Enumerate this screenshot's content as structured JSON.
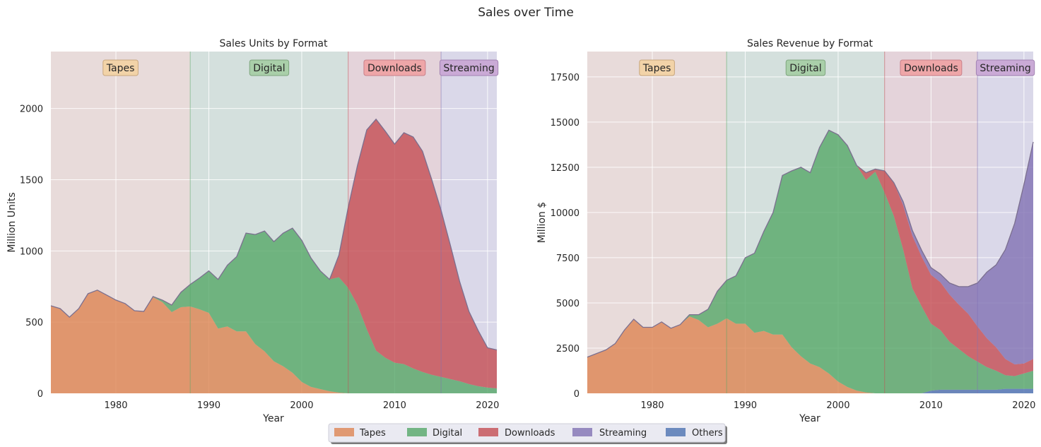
{
  "figure": {
    "title": "Sales over Time"
  },
  "legend": {
    "items": [
      {
        "label": "Tapes",
        "color": "#dd8452"
      },
      {
        "label": "Digital",
        "color": "#55a868"
      },
      {
        "label": "Downloads",
        "color": "#c44e52"
      },
      {
        "label": "Streaming",
        "color": "#8172b3"
      },
      {
        "label": "Others",
        "color": "#4c72b0"
      }
    ]
  },
  "chart_data": [
    {
      "type": "area",
      "stacked": true,
      "title": "Sales Units by Format",
      "xlabel": "Year",
      "ylabel": "Million Units",
      "xlim": [
        1973,
        2021
      ],
      "ylim": [
        0,
        2400
      ],
      "xticks": [
        1980,
        1990,
        2000,
        2010,
        2020
      ],
      "yticks": [
        0,
        500,
        1000,
        1500,
        2000
      ],
      "grid": true,
      "eras": [
        {
          "label": "Tapes",
          "start": 1973,
          "end": 1988,
          "color": "#dd8452"
        },
        {
          "label": "Digital",
          "start": 1988,
          "end": 2005,
          "color": "#55a868"
        },
        {
          "label": "Downloads",
          "start": 2005,
          "end": 2015,
          "color": "#c44e52"
        },
        {
          "label": "Streaming",
          "start": 2015,
          "end": 2021,
          "color": "#8172b3"
        }
      ],
      "x": [
        1973,
        1974,
        1975,
        1976,
        1977,
        1978,
        1979,
        1980,
        1981,
        1982,
        1983,
        1984,
        1985,
        1986,
        1987,
        1988,
        1989,
        1990,
        1991,
        1992,
        1993,
        1994,
        1995,
        1996,
        1997,
        1998,
        1999,
        2000,
        2001,
        2002,
        2003,
        2004,
        2005,
        2006,
        2007,
        2008,
        2009,
        2010,
        2011,
        2012,
        2013,
        2014,
        2015,
        2016,
        2017,
        2018,
        2019,
        2020,
        2021
      ],
      "series": [
        {
          "name": "Tapes",
          "color": "#dd8452",
          "values": [
            615,
            595,
            535,
            595,
            700,
            725,
            690,
            655,
            630,
            580,
            575,
            675,
            640,
            570,
            605,
            610,
            590,
            565,
            455,
            470,
            435,
            435,
            345,
            295,
            225,
            190,
            145,
            80,
            45,
            30,
            15,
            5,
            0,
            0,
            0,
            0,
            0,
            0,
            0,
            0,
            0,
            0,
            0,
            0,
            0,
            0,
            0,
            0,
            0
          ]
        },
        {
          "name": "Digital",
          "color": "#55a868",
          "values": [
            0,
            0,
            0,
            0,
            0,
            0,
            0,
            0,
            0,
            0,
            0,
            5,
            15,
            50,
            105,
            155,
            220,
            295,
            345,
            430,
            525,
            690,
            770,
            845,
            840,
            935,
            1015,
            995,
            905,
            830,
            785,
            810,
            740,
            620,
            450,
            300,
            250,
            215,
            205,
            175,
            150,
            130,
            115,
            100,
            85,
            65,
            50,
            40,
            35
          ]
        },
        {
          "name": "Downloads",
          "color": "#c44e52",
          "values": [
            0,
            0,
            0,
            0,
            0,
            0,
            0,
            0,
            0,
            0,
            0,
            0,
            0,
            0,
            0,
            0,
            0,
            0,
            0,
            0,
            0,
            0,
            0,
            0,
            0,
            0,
            0,
            0,
            0,
            0,
            0,
            155,
            565,
            980,
            1400,
            1625,
            1590,
            1535,
            1625,
            1625,
            1550,
            1370,
            1170,
            940,
            700,
            510,
            390,
            280,
            270
          ]
        },
        {
          "name": "Streaming",
          "color": "#8172b3",
          "values": [
            0,
            0,
            0,
            0,
            0,
            0,
            0,
            0,
            0,
            0,
            0,
            0,
            0,
            0,
            0,
            0,
            0,
            0,
            0,
            0,
            0,
            0,
            0,
            0,
            0,
            0,
            0,
            0,
            0,
            0,
            0,
            0,
            0,
            0,
            0,
            0,
            0,
            0,
            0,
            0,
            0,
            0,
            0,
            0,
            0,
            0,
            0,
            0,
            0
          ]
        },
        {
          "name": "Others",
          "color": "#4c72b0",
          "values": [
            0,
            0,
            0,
            0,
            0,
            0,
            0,
            0,
            0,
            0,
            0,
            0,
            0,
            0,
            0,
            0,
            0,
            0,
            0,
            0,
            0,
            0,
            0,
            0,
            0,
            0,
            0,
            0,
            0,
            0,
            0,
            0,
            0,
            0,
            0,
            0,
            0,
            0,
            0,
            0,
            0,
            0,
            0,
            0,
            0,
            0,
            0,
            0,
            0
          ]
        }
      ]
    },
    {
      "type": "area",
      "stacked": true,
      "title": "Sales Revenue by Format",
      "xlabel": "Year",
      "ylabel": "Million $",
      "xlim": [
        1973,
        2021
      ],
      "ylim": [
        0,
        18900
      ],
      "xticks": [
        1980,
        1990,
        2000,
        2010,
        2020
      ],
      "yticks": [
        0,
        2500,
        5000,
        7500,
        10000,
        12500,
        15000,
        17500
      ],
      "grid": true,
      "eras": [
        {
          "label": "Tapes",
          "start": 1973,
          "end": 1988,
          "color": "#dd8452"
        },
        {
          "label": "Digital",
          "start": 1988,
          "end": 2005,
          "color": "#55a868"
        },
        {
          "label": "Downloads",
          "start": 2005,
          "end": 2015,
          "color": "#c44e52"
        },
        {
          "label": "Streaming",
          "start": 2015,
          "end": 2021,
          "color": "#8172b3"
        }
      ],
      "x": [
        1973,
        1974,
        1975,
        1976,
        1977,
        1978,
        1979,
        1980,
        1981,
        1982,
        1983,
        1984,
        1985,
        1986,
        1987,
        1988,
        1989,
        1990,
        1991,
        1992,
        1993,
        1994,
        1995,
        1996,
        1997,
        1998,
        1999,
        2000,
        2001,
        2002,
        2003,
        2004,
        2005,
        2006,
        2007,
        2008,
        2009,
        2010,
        2011,
        2012,
        2013,
        2014,
        2015,
        2016,
        2017,
        2018,
        2019,
        2020,
        2021
      ],
      "series": [
        {
          "name": "Others",
          "color": "#4c72b0",
          "values": [
            0,
            0,
            0,
            0,
            0,
            0,
            0,
            0,
            0,
            0,
            0,
            0,
            0,
            0,
            0,
            0,
            0,
            0,
            0,
            0,
            0,
            0,
            0,
            0,
            0,
            0,
            0,
            0,
            0,
            0,
            0,
            0,
            0,
            0,
            0,
            0,
            0,
            150,
            200,
            200,
            200,
            200,
            200,
            200,
            200,
            250,
            250,
            250,
            250
          ]
        },
        {
          "name": "Tapes",
          "color": "#dd8452",
          "values": [
            2000,
            2200,
            2400,
            2750,
            3500,
            4100,
            3650,
            3650,
            3950,
            3600,
            3800,
            4250,
            4050,
            3650,
            3850,
            4150,
            3850,
            3850,
            3350,
            3450,
            3250,
            3250,
            2550,
            2050,
            1650,
            1450,
            1100,
            650,
            350,
            150,
            50,
            0,
            0,
            0,
            0,
            0,
            0,
            0,
            0,
            0,
            0,
            0,
            0,
            0,
            0,
            0,
            0,
            0,
            0
          ]
        },
        {
          "name": "Digital",
          "color": "#55a868",
          "values": [
            0,
            0,
            0,
            0,
            0,
            0,
            0,
            0,
            0,
            0,
            0,
            100,
            300,
            1000,
            1800,
            2100,
            2650,
            3650,
            4400,
            5500,
            6750,
            8800,
            9750,
            10450,
            10550,
            12150,
            13450,
            13650,
            13350,
            12450,
            11750,
            12250,
            11100,
            9800,
            7950,
            5800,
            4800,
            3700,
            3300,
            2650,
            2250,
            1850,
            1550,
            1250,
            1050,
            750,
            700,
            850,
            1000
          ]
        },
        {
          "name": "Downloads",
          "color": "#c44e52",
          "values": [
            0,
            0,
            0,
            0,
            0,
            0,
            0,
            0,
            0,
            0,
            0,
            0,
            0,
            0,
            0,
            0,
            0,
            0,
            0,
            0,
            0,
            0,
            0,
            0,
            0,
            0,
            0,
            0,
            0,
            0,
            400,
            150,
            1200,
            1850,
            2450,
            2900,
            2750,
            2700,
            2650,
            2600,
            2450,
            2350,
            1950,
            1600,
            1300,
            900,
            650,
            550,
            650
          ]
        },
        {
          "name": "Streaming",
          "color": "#8172b3",
          "values": [
            0,
            0,
            0,
            0,
            0,
            0,
            0,
            0,
            0,
            0,
            0,
            0,
            0,
            0,
            0,
            0,
            0,
            0,
            0,
            0,
            0,
            0,
            0,
            0,
            0,
            0,
            0,
            0,
            0,
            0,
            0,
            0,
            0,
            0,
            200,
            300,
            350,
            400,
            450,
            650,
            1000,
            1500,
            2400,
            3650,
            4550,
            6050,
            7800,
            9900,
            12000
          ]
        }
      ]
    }
  ]
}
